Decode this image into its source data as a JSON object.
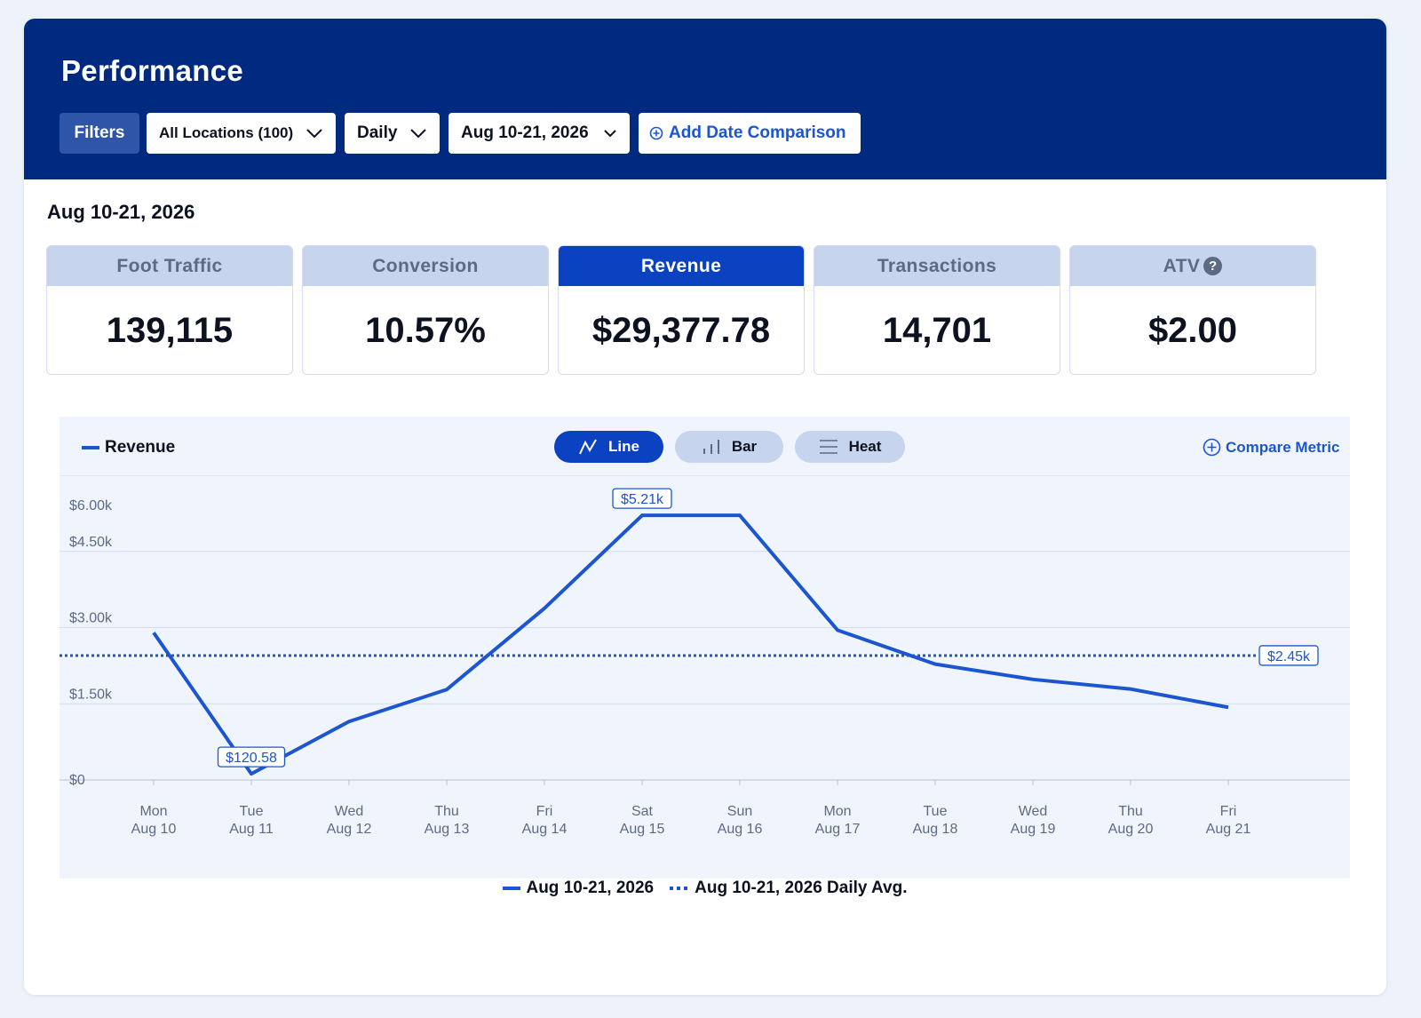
{
  "header": {
    "title": "Performance",
    "filters_label": "Filters",
    "location_select": "All Locations (100)",
    "interval_select": "Daily",
    "date_select": "Aug 10-21, 2026",
    "add_comparison_label": "Add Date Comparison"
  },
  "range_heading": "Aug 10-21, 2026",
  "kpis": [
    {
      "label": "Foot Traffic",
      "value": "139,115"
    },
    {
      "label": "Conversion",
      "value": "10.57%"
    },
    {
      "label": "Revenue",
      "value": "$29,377.78"
    },
    {
      "label": "Transactions",
      "value": "14,701"
    },
    {
      "label": "ATV",
      "value": "$2.00"
    }
  ],
  "active_kpi": "Revenue",
  "chart_controls": {
    "series_label": "Revenue",
    "line_label": "Line",
    "bar_label": "Bar",
    "heat_label": "Heat",
    "active_view": "Line",
    "compare_metric_label": "Compare Metric"
  },
  "chart_data": {
    "type": "line",
    "categories": [
      "Mon Aug 10",
      "Tue Aug 11",
      "Wed Aug 12",
      "Thu Aug 13",
      "Fri Aug 14",
      "Sat Aug 15",
      "Sun Aug 16",
      "Mon Aug 17",
      "Tue Aug 18",
      "Wed Aug 19",
      "Thu Aug 20",
      "Fri Aug 21"
    ],
    "x_ticks": [
      {
        "day": "Mon",
        "date": "Aug 10"
      },
      {
        "day": "Tue",
        "date": "Aug 11"
      },
      {
        "day": "Wed",
        "date": "Aug 12"
      },
      {
        "day": "Thu",
        "date": "Aug 13"
      },
      {
        "day": "Fri",
        "date": "Aug 14"
      },
      {
        "day": "Sat",
        "date": "Aug 15"
      },
      {
        "day": "Sun",
        "date": "Aug 16"
      },
      {
        "day": "Mon",
        "date": "Aug 17"
      },
      {
        "day": "Tue",
        "date": "Aug 18"
      },
      {
        "day": "Wed",
        "date": "Aug 19"
      },
      {
        "day": "Thu",
        "date": "Aug 20"
      },
      {
        "day": "Fri",
        "date": "Aug 21"
      }
    ],
    "series": [
      {
        "name": "Aug 10-21, 2026",
        "style": "solid",
        "values": [
          2900,
          120.58,
          1150,
          1780,
          3380,
          5210,
          5210,
          2950,
          2280,
          1980,
          1790,
          1430
        ]
      },
      {
        "name": "Aug 10-21, 2026 Daily Avg.",
        "style": "dotted",
        "values": [
          2450,
          2450,
          2450,
          2450,
          2450,
          2450,
          2450,
          2450,
          2450,
          2450,
          2450,
          2450
        ]
      }
    ],
    "y_ticks": [
      "$0",
      "$1.50k",
      "$3.00k",
      "$4.50k",
      "$6.00k"
    ],
    "y_tick_values": [
      0,
      1500,
      3000,
      4500,
      6000
    ],
    "ylim": [
      0,
      6000
    ],
    "annotations": [
      {
        "label": "$5.21k",
        "index": 5,
        "value": 5210
      },
      {
        "label": "$120.58",
        "index": 1,
        "value": 120.58
      },
      {
        "label": "$2.45k",
        "series": "avg",
        "value": 2450
      }
    ],
    "grid": true,
    "line_color": "#1b55d1"
  }
}
